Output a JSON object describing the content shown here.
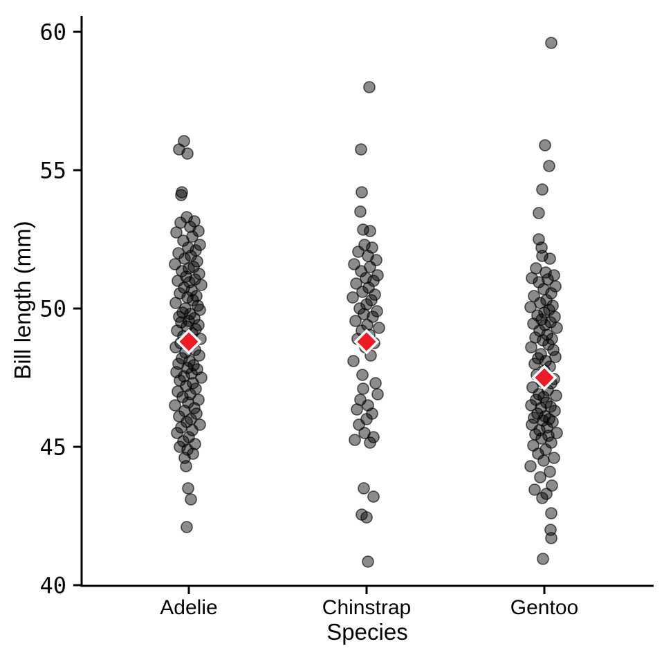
{
  "chart_data": {
    "type": "scatter",
    "subtype": "jitter-strip-plot-with-means",
    "title": "",
    "xlabel": "Species",
    "ylabel": "Bill length (mm)",
    "categories": [
      "Adelie",
      "Chinstrap",
      "Gentoo"
    ],
    "ylim": [
      40,
      60.6
    ],
    "yticks": [
      40,
      45,
      50,
      55,
      60
    ],
    "grid": false,
    "legend": "none",
    "colors": {
      "axis": "#000000",
      "point_fill": "rgba(0,0,0,0.45)",
      "point_edge": "rgba(0,0,0,0.65)",
      "mean_fill": "#ed1c24",
      "mean_edge": "#ffffff"
    },
    "means": [
      48.8,
      48.8,
      47.5
    ],
    "series": [
      {
        "name": "Adelie",
        "points": [
          [
            -7,
            56.05
          ],
          [
            -14,
            55.75
          ],
          [
            -2,
            55.6
          ],
          [
            -10,
            54.2
          ],
          [
            -11,
            54.1
          ],
          [
            -3,
            53.3
          ],
          [
            8,
            53.15
          ],
          [
            -12,
            53.1
          ],
          [
            2,
            52.95
          ],
          [
            14,
            52.8
          ],
          [
            -18,
            52.75
          ],
          [
            5,
            52.6
          ],
          [
            -8,
            52.45
          ],
          [
            16,
            52.3
          ],
          [
            -1,
            52.2
          ],
          [
            10,
            52.1
          ],
          [
            -15,
            52.0
          ],
          [
            3,
            51.9
          ],
          [
            -6,
            51.8
          ],
          [
            12,
            51.7
          ],
          [
            -20,
            51.6
          ],
          [
            7,
            51.5
          ],
          [
            0,
            51.45
          ],
          [
            -10,
            51.35
          ],
          [
            15,
            51.25
          ],
          [
            -4,
            51.15
          ],
          [
            9,
            51.05
          ],
          [
            -16,
            51.0
          ],
          [
            1,
            50.95
          ],
          [
            18,
            50.85
          ],
          [
            -7,
            50.75
          ],
          [
            4,
            50.65
          ],
          [
            -13,
            50.55
          ],
          [
            11,
            50.45
          ],
          [
            -2,
            50.4
          ],
          [
            6,
            50.3
          ],
          [
            -19,
            50.2
          ],
          [
            13,
            50.1
          ],
          [
            -5,
            50.0
          ],
          [
            16,
            49.95
          ],
          [
            -9,
            49.85
          ],
          [
            2,
            49.8
          ],
          [
            -14,
            49.7
          ],
          [
            8,
            49.65
          ],
          [
            0,
            49.55
          ],
          [
            -11,
            49.5
          ],
          [
            14,
            49.4
          ],
          [
            -3,
            49.35
          ],
          [
            10,
            49.25
          ],
          [
            -17,
            49.2
          ],
          [
            5,
            49.1
          ],
          [
            -8,
            49.0
          ],
          [
            17,
            48.9
          ],
          [
            -1,
            48.85
          ],
          [
            -12,
            48.75
          ],
          [
            3,
            48.7
          ],
          [
            -19,
            48.6
          ],
          [
            9,
            48.5
          ],
          [
            -5,
            48.4
          ],
          [
            15,
            48.3
          ],
          [
            -10,
            48.2
          ],
          [
            1,
            48.1
          ],
          [
            -15,
            48.0
          ],
          [
            7,
            47.95
          ],
          [
            -2,
            47.85
          ],
          [
            12,
            47.8
          ],
          [
            -18,
            47.7
          ],
          [
            4,
            47.65
          ],
          [
            -7,
            47.55
          ],
          [
            18,
            47.5
          ],
          [
            -13,
            47.4
          ],
          [
            6,
            47.3
          ],
          [
            -4,
            47.2
          ],
          [
            10,
            47.1
          ],
          [
            -16,
            47.0
          ],
          [
            2,
            46.9
          ],
          [
            -9,
            46.8
          ],
          [
            14,
            46.7
          ],
          [
            -1,
            46.6
          ],
          [
            -20,
            46.5
          ],
          [
            8,
            46.4
          ],
          [
            -6,
            46.3
          ],
          [
            11,
            46.2
          ],
          [
            -14,
            46.1
          ],
          [
            3,
            46.0
          ],
          [
            -3,
            45.9
          ],
          [
            16,
            45.8
          ],
          [
            -11,
            45.7
          ],
          [
            5,
            45.6
          ],
          [
            -17,
            45.5
          ],
          [
            0,
            45.35
          ],
          [
            -8,
            45.2
          ],
          [
            9,
            45.1
          ],
          [
            -13,
            45.0
          ],
          [
            -2,
            44.9
          ],
          [
            6,
            44.75
          ],
          [
            -6,
            44.6
          ],
          [
            -4,
            44.3
          ],
          [
            -1,
            43.5
          ],
          [
            3,
            43.1
          ],
          [
            -3,
            42.1
          ]
        ]
      },
      {
        "name": "Chinstrap",
        "points": [
          [
            4,
            58.0
          ],
          [
            -8,
            55.75
          ],
          [
            -7,
            54.2
          ],
          [
            -9,
            53.5
          ],
          [
            -5,
            52.85
          ],
          [
            5,
            52.8
          ],
          [
            -3,
            52.3
          ],
          [
            8,
            52.2
          ],
          [
            -12,
            52.05
          ],
          [
            2,
            51.9
          ],
          [
            14,
            51.75
          ],
          [
            -18,
            51.6
          ],
          [
            5,
            51.5
          ],
          [
            -8,
            51.35
          ],
          [
            16,
            51.2
          ],
          [
            -1,
            51.1
          ],
          [
            10,
            51.0
          ],
          [
            -15,
            50.9
          ],
          [
            3,
            50.75
          ],
          [
            -6,
            50.6
          ],
          [
            12,
            50.5
          ],
          [
            -20,
            50.4
          ],
          [
            7,
            50.3
          ],
          [
            0,
            50.15
          ],
          [
            -10,
            50.0
          ],
          [
            15,
            49.9
          ],
          [
            -4,
            49.8
          ],
          [
            9,
            49.7
          ],
          [
            -16,
            49.55
          ],
          [
            1,
            49.4
          ],
          [
            18,
            49.3
          ],
          [
            -7,
            49.2
          ],
          [
            4,
            49.05
          ],
          [
            -13,
            48.9
          ],
          [
            11,
            48.75
          ],
          [
            -2,
            48.6
          ],
          [
            6,
            48.3
          ],
          [
            -19,
            48.1
          ],
          [
            -6,
            47.6
          ],
          [
            13,
            47.3
          ],
          [
            -5,
            47.1
          ],
          [
            16,
            46.9
          ],
          [
            -9,
            46.7
          ],
          [
            2,
            46.5
          ],
          [
            -14,
            46.35
          ],
          [
            8,
            46.2
          ],
          [
            0,
            46.0
          ],
          [
            -11,
            45.8
          ],
          [
            -3,
            45.5
          ],
          [
            10,
            45.35
          ],
          [
            -17,
            45.25
          ],
          [
            5,
            45.15
          ],
          [
            -4,
            43.5
          ],
          [
            10,
            43.2
          ],
          [
            -7,
            42.55
          ],
          [
            0,
            42.45
          ],
          [
            2,
            40.85
          ]
        ]
      },
      {
        "name": "Gentoo",
        "points": [
          [
            10,
            59.6
          ],
          [
            1,
            55.9
          ],
          [
            7,
            55.15
          ],
          [
            -3,
            54.3
          ],
          [
            -8,
            53.45
          ],
          [
            -8,
            52.5
          ],
          [
            -4,
            52.2
          ],
          [
            -3,
            51.9
          ],
          [
            8,
            51.8
          ],
          [
            -12,
            51.45
          ],
          [
            2,
            51.3
          ],
          [
            14,
            51.2
          ],
          [
            -18,
            51.1
          ],
          [
            5,
            51.05
          ],
          [
            -8,
            50.95
          ],
          [
            16,
            50.8
          ],
          [
            -1,
            50.7
          ],
          [
            10,
            50.55
          ],
          [
            -15,
            50.45
          ],
          [
            3,
            50.3
          ],
          [
            -6,
            50.2
          ],
          [
            12,
            50.1
          ],
          [
            -20,
            50.05
          ],
          [
            7,
            49.95
          ],
          [
            0,
            49.85
          ],
          [
            -10,
            49.75
          ],
          [
            15,
            49.7
          ],
          [
            -4,
            49.6
          ],
          [
            9,
            49.5
          ],
          [
            -16,
            49.45
          ],
          [
            1,
            49.4
          ],
          [
            18,
            49.3
          ],
          [
            -7,
            49.2
          ],
          [
            4,
            49.05
          ],
          [
            -13,
            48.95
          ],
          [
            11,
            48.9
          ],
          [
            -2,
            48.85
          ],
          [
            6,
            48.7
          ],
          [
            -19,
            48.6
          ],
          [
            13,
            48.5
          ],
          [
            -5,
            48.35
          ],
          [
            16,
            48.25
          ],
          [
            -9,
            48.2
          ],
          [
            2,
            48.1
          ],
          [
            -14,
            48.0
          ],
          [
            8,
            47.9
          ],
          [
            0,
            47.75
          ],
          [
            -11,
            47.6
          ],
          [
            14,
            47.45
          ],
          [
            -3,
            47.35
          ],
          [
            10,
            47.3
          ],
          [
            -17,
            47.15
          ],
          [
            5,
            47.05
          ],
          [
            -8,
            46.9
          ],
          [
            17,
            46.85
          ],
          [
            -1,
            46.8
          ],
          [
            -12,
            46.7
          ],
          [
            3,
            46.6
          ],
          [
            -19,
            46.5
          ],
          [
            9,
            46.45
          ],
          [
            -5,
            46.4
          ],
          [
            15,
            46.3
          ],
          [
            -10,
            46.2
          ],
          [
            1,
            46.1
          ],
          [
            -15,
            46.05
          ],
          [
            7,
            46.0
          ],
          [
            -2,
            45.95
          ],
          [
            12,
            45.9
          ],
          [
            -18,
            45.8
          ],
          [
            4,
            45.7
          ],
          [
            -7,
            45.6
          ],
          [
            18,
            45.5
          ],
          [
            -13,
            45.45
          ],
          [
            6,
            45.4
          ],
          [
            -4,
            45.3
          ],
          [
            10,
            45.15
          ],
          [
            -16,
            45.05
          ],
          [
            2,
            44.9
          ],
          [
            -9,
            44.75
          ],
          [
            14,
            44.6
          ],
          [
            -1,
            44.5
          ],
          [
            -20,
            44.3
          ],
          [
            8,
            44.1
          ],
          [
            -6,
            43.9
          ],
          [
            11,
            43.6
          ],
          [
            -14,
            43.45
          ],
          [
            3,
            43.3
          ],
          [
            -3,
            43.15
          ],
          [
            10,
            42.6
          ],
          [
            9,
            42.0
          ],
          [
            10,
            41.7
          ],
          [
            -2,
            40.95
          ]
        ]
      }
    ]
  }
}
